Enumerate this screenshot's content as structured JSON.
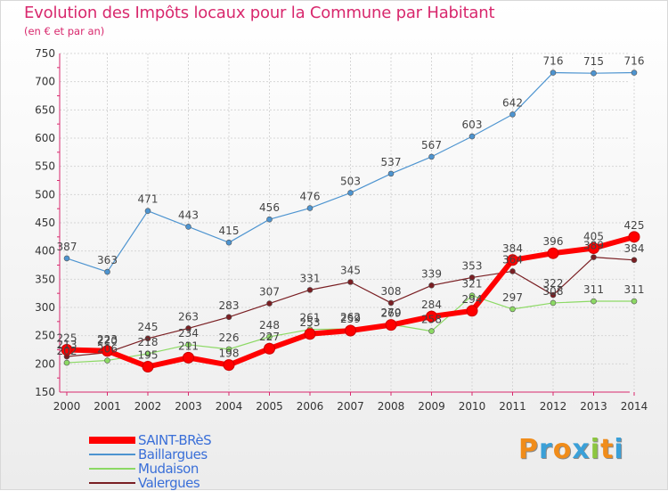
{
  "title": "Evolution des Impôts locaux pour la Commune par Habitant",
  "subtitle": "(en € et par an)",
  "brand": {
    "text": "Proxiti",
    "letter_colors": [
      "#f08c1a",
      "#3aa0d8",
      "#f08c1a",
      "#3aa0d8",
      "#8cc63f",
      "#f08c1a",
      "#3aa0d8"
    ]
  },
  "chart_data": {
    "type": "line",
    "title": "Evolution des Impôts locaux pour la Commune par Habitant",
    "subtitle": "(en € et par an)",
    "categories": [
      "2000",
      "2001",
      "2002",
      "2003",
      "2004",
      "2005",
      "2006",
      "2007",
      "2008",
      "2009",
      "2010",
      "2011",
      "2012",
      "2013",
      "2014"
    ],
    "ylim": [
      150,
      750
    ],
    "yticks": [
      150,
      200,
      250,
      300,
      350,
      400,
      450,
      500,
      550,
      600,
      650,
      700,
      750
    ],
    "grid": true,
    "legend_position": "bottom-left",
    "series": [
      {
        "name": "SAINT-BRèS",
        "color": "#ff0000",
        "values": [
          225,
          223,
          195,
          211,
          198,
          227,
          253,
          259,
          269,
          284,
          294,
          384,
          396,
          405,
          425
        ]
      },
      {
        "name": "Baillargues",
        "color": "#4d94d0",
        "values": [
          387,
          363,
          471,
          443,
          415,
          456,
          476,
          503,
          537,
          567,
          603,
          642,
          716,
          715,
          716
        ]
      },
      {
        "name": "Mudaison",
        "color": "#8cd964",
        "values": [
          202,
          206,
          218,
          234,
          226,
          248,
          261,
          262,
          270,
          258,
          321,
          297,
          308,
          311,
          311
        ]
      },
      {
        "name": "Valergues",
        "color": "#7a1f23",
        "values": [
          213,
          220,
          245,
          263,
          283,
          307,
          331,
          345,
          308,
          339,
          353,
          364,
          322,
          389,
          384
        ]
      }
    ]
  }
}
